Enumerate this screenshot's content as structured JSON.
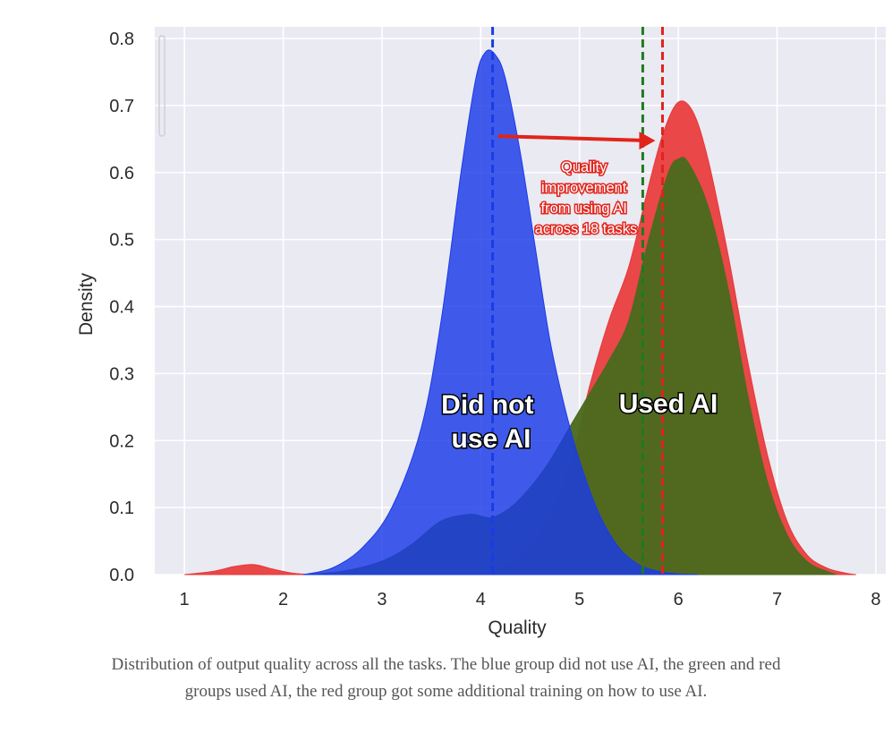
{
  "chart_data": {
    "type": "area",
    "title": "",
    "xlabel": "Quality",
    "ylabel": "Density",
    "xlim": [
      0.7,
      8.1
    ],
    "ylim": [
      0,
      0.8
    ],
    "x_ticks": [
      1,
      2,
      3,
      4,
      5,
      6,
      7,
      8
    ],
    "y_ticks": [
      "0.0",
      "0.1",
      "0.2",
      "0.3",
      "0.4",
      "0.5",
      "0.6",
      "0.7",
      "0.8"
    ],
    "grid": true,
    "series": [
      {
        "name": "Used AI with additional training (red)",
        "color": "#e8383a",
        "x": [
          1.0,
          1.3,
          1.5,
          1.7,
          1.9,
          2.1,
          2.3,
          2.6,
          3.0,
          3.4,
          3.8,
          4.2,
          4.6,
          4.9,
          5.1,
          5.3,
          5.5,
          5.7,
          5.85,
          6.0,
          6.15,
          6.3,
          6.5,
          6.7,
          6.9,
          7.1,
          7.3,
          7.5,
          7.7,
          7.8
        ],
        "values": [
          0.0,
          0.005,
          0.012,
          0.015,
          0.008,
          0.002,
          0.0,
          0.0,
          0.0,
          0.0,
          0.0,
          0.01,
          0.06,
          0.16,
          0.28,
          0.38,
          0.46,
          0.58,
          0.66,
          0.705,
          0.69,
          0.62,
          0.48,
          0.32,
          0.18,
          0.08,
          0.03,
          0.01,
          0.002,
          0.0
        ]
      },
      {
        "name": "Used AI (green)",
        "color": "#4b6a1e",
        "x": [
          2.2,
          2.6,
          3.0,
          3.3,
          3.6,
          3.9,
          4.1,
          4.3,
          4.5,
          4.7,
          4.9,
          5.1,
          5.3,
          5.5,
          5.7,
          5.9,
          6.0,
          6.1,
          6.3,
          6.5,
          6.7,
          6.9,
          7.1,
          7.3,
          7.5,
          7.6
        ],
        "values": [
          0.0,
          0.005,
          0.02,
          0.045,
          0.08,
          0.09,
          0.085,
          0.1,
          0.13,
          0.17,
          0.22,
          0.27,
          0.32,
          0.38,
          0.5,
          0.6,
          0.62,
          0.615,
          0.55,
          0.43,
          0.27,
          0.14,
          0.06,
          0.02,
          0.005,
          0.0
        ]
      },
      {
        "name": "Did not use AI (blue)",
        "color": "#1a3be8",
        "x": [
          2.2,
          2.5,
          2.8,
          3.1,
          3.4,
          3.6,
          3.8,
          3.95,
          4.05,
          4.15,
          4.25,
          4.4,
          4.55,
          4.7,
          4.85,
          5.0,
          5.2,
          5.4,
          5.6,
          5.8,
          6.0,
          6.2
        ],
        "values": [
          0.0,
          0.01,
          0.04,
          0.1,
          0.22,
          0.38,
          0.6,
          0.74,
          0.78,
          0.775,
          0.74,
          0.63,
          0.49,
          0.35,
          0.25,
          0.17,
          0.09,
          0.04,
          0.015,
          0.005,
          0.001,
          0.0
        ]
      }
    ],
    "reference_lines": [
      {
        "name": "Blue mean",
        "x": 4.12,
        "color": "#1a3be8"
      },
      {
        "name": "Green mean",
        "x": 5.64,
        "color": "#1f7a1f"
      },
      {
        "name": "Red mean",
        "x": 5.84,
        "color": "#e0241c"
      }
    ],
    "arrow": {
      "from_x": 4.12,
      "to_x": 5.84,
      "y": 0.653,
      "color": "#e0241c"
    },
    "annotations": {
      "blue_label": [
        "Did not",
        "use AI"
      ],
      "green_label": [
        "Used AI"
      ],
      "improvement": [
        "Quality",
        "improvement",
        "from using AI",
        "across 18 tasks"
      ]
    }
  },
  "caption": "Distribution of output quality across all the tasks. The blue group did not use AI, the green and red groups used AI, the red group got some additional training on how to use AI."
}
